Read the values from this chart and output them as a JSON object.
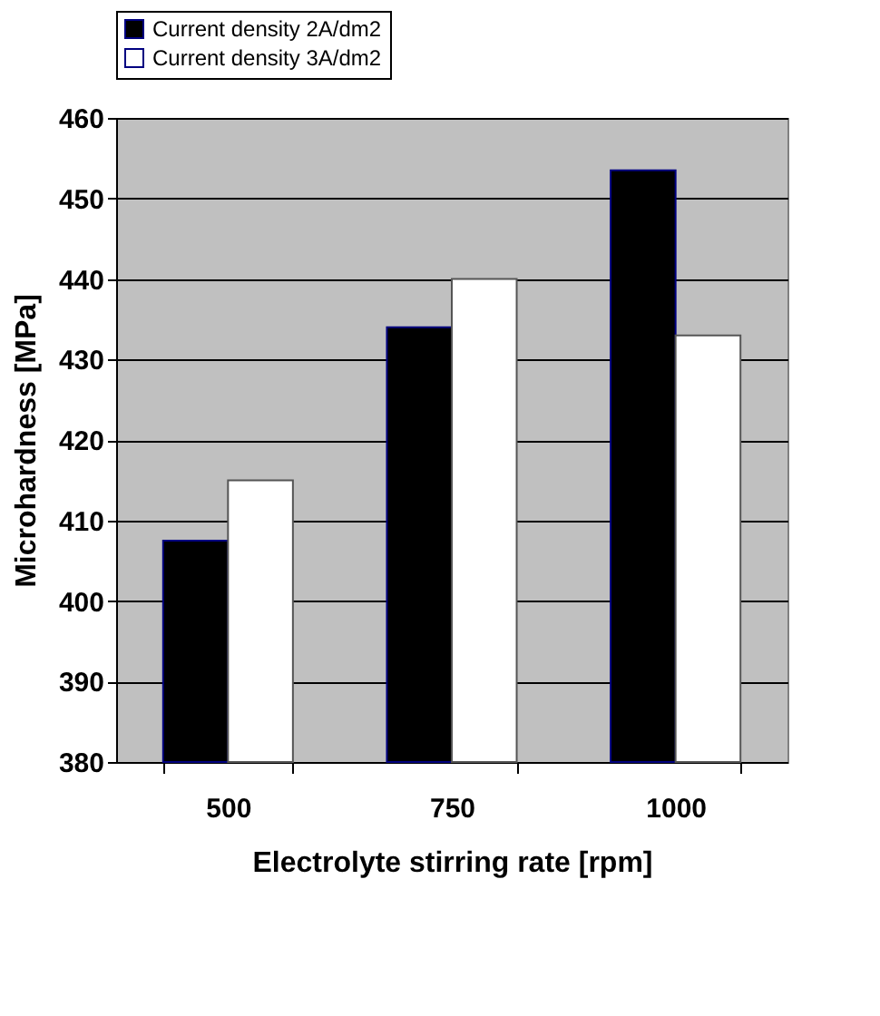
{
  "chart_data": {
    "type": "bar",
    "xlabel": "Electrolyte stirring rate [rpm]",
    "ylabel": "Microhardness [MPa]",
    "categories": [
      "500",
      "750",
      "1000"
    ],
    "series": [
      {
        "name": "Current density 2A/dm2",
        "color": "#000000",
        "values": [
          407.5,
          434,
          453.5
        ]
      },
      {
        "name": "Current density 3A/dm2",
        "color": "#ffffff",
        "values": [
          415,
          440,
          433
        ]
      }
    ],
    "ylim": [
      380,
      460
    ],
    "yticks": [
      380,
      390,
      400,
      410,
      420,
      430,
      440,
      450,
      460
    ],
    "grid": "y",
    "legend": "top"
  }
}
